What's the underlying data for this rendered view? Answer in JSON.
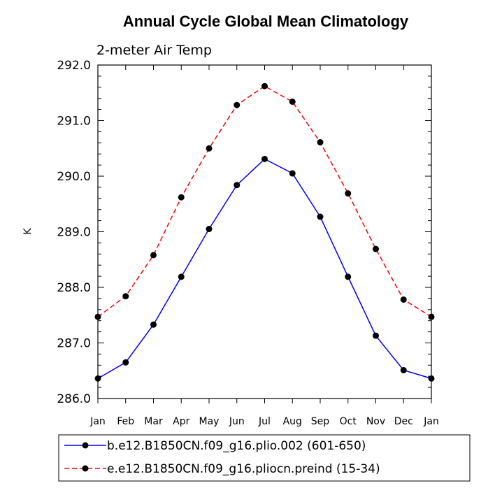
{
  "chart_data": {
    "type": "line",
    "title": "Annual Cycle Global Mean Climatology",
    "subtitle": "2-meter Air Temp",
    "ylabel": "K",
    "xlabel": "",
    "categories": [
      "Jan",
      "Feb",
      "Mar",
      "Apr",
      "May",
      "Jun",
      "Jul",
      "Aug",
      "Sep",
      "Oct",
      "Nov",
      "Dec",
      "Jan"
    ],
    "ylim": [
      286.0,
      292.0
    ],
    "yticks": [
      "286.0",
      "287.0",
      "288.0",
      "289.0",
      "290.0",
      "291.0",
      "292.0"
    ],
    "series": [
      {
        "name": "b.e12.B1850CN.f09_g16.plio.002 (601-650)",
        "color": "#0000ff",
        "dash": "solid",
        "values": [
          286.36,
          286.65,
          287.33,
          288.19,
          289.05,
          289.84,
          290.31,
          290.05,
          289.27,
          288.19,
          287.13,
          286.51,
          286.36
        ]
      },
      {
        "name": "e.e12.B1850CN.f09_g16.pliocn.preind (15-34)",
        "color": "#ff0000",
        "dash": "dashed",
        "values": [
          287.47,
          287.84,
          288.58,
          289.62,
          290.5,
          291.28,
          291.62,
          291.34,
          290.61,
          289.69,
          288.69,
          287.78,
          287.47
        ]
      }
    ],
    "legend_position": "bottom"
  }
}
